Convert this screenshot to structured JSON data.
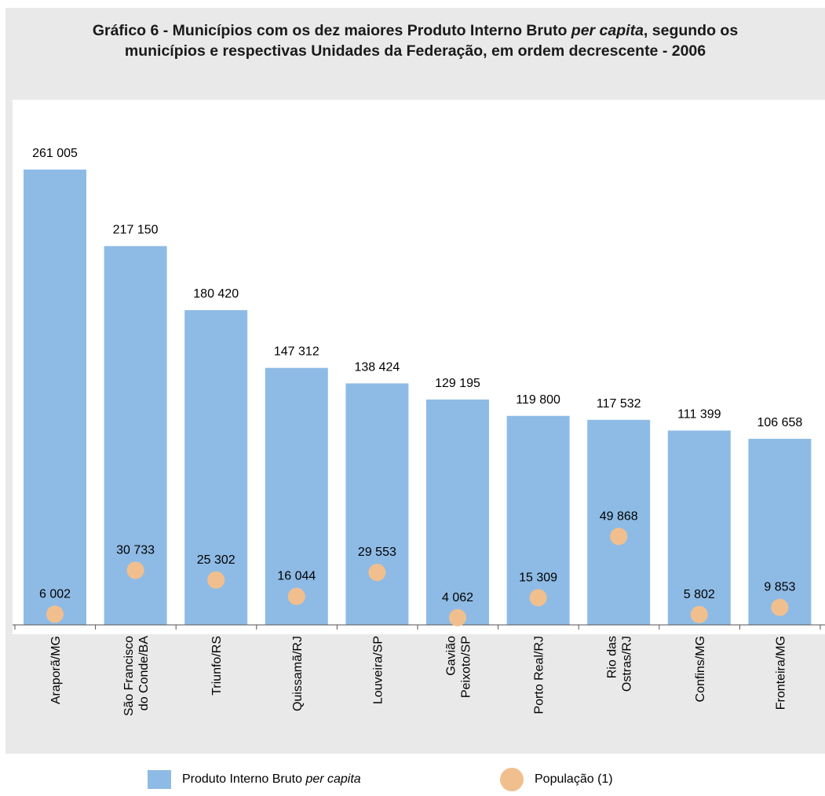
{
  "title": {
    "line1_pre": "Gráfico 6 - Municípios com os dez maiores Produto Interno Bruto ",
    "line1_italic": "per capita",
    "line1_post": ", segundo os",
    "line2": "municípios e respectivas Unidades da Federação, em ordem decrescente - 2006"
  },
  "legend": {
    "pib_label_pre": "Produto Interno Bruto ",
    "pib_label_italic": "per capita",
    "pop_label": "População (1)"
  },
  "colors": {
    "bar": "#8ebbe5",
    "dot": "#f1bf8e",
    "panel": "#e9e9ea"
  },
  "chart_data": {
    "type": "bar",
    "title": "Gráfico 6 - Municípios com os dez maiores Produto Interno Bruto per capita, segundo os municípios e respectivas Unidades da Federação, em ordem decrescente - 2006",
    "categories": [
      [
        "Araporã/MG"
      ],
      [
        "São Francisco",
        "do Conde/BA"
      ],
      [
        "Triunfo/RS"
      ],
      [
        "Quissamã/RJ"
      ],
      [
        "Louveira/SP"
      ],
      [
        "Gavião",
        "Peixoto/SP"
      ],
      [
        "Porto Real/RJ"
      ],
      [
        "Rio das",
        "Ostras/RJ"
      ],
      [
        "Confins/MG"
      ],
      [
        "Fronteira/MG"
      ]
    ],
    "series": [
      {
        "name": "Produto Interno Bruto per capita",
        "type": "bar",
        "values": [
          261005,
          217150,
          180420,
          147312,
          138424,
          129195,
          119800,
          117532,
          111399,
          106658
        ],
        "labels": [
          "261 005",
          "217 150",
          "180 420",
          "147 312",
          "138 424",
          "129 195",
          "119 800",
          "117 532",
          "111 399",
          "106 658"
        ]
      },
      {
        "name": "População (1)",
        "type": "scatter",
        "values": [
          6002,
          30733,
          25302,
          16044,
          29553,
          4062,
          15309,
          49868,
          5802,
          9853
        ],
        "labels": [
          "6 002",
          "30 733",
          "25 302",
          "16 044",
          "29 553",
          "4 062",
          "15 309",
          "49 868",
          "5 802",
          "9 853"
        ]
      }
    ],
    "ylim": [
      0,
      261005
    ],
    "ylim_secondary": [
      0,
      100000
    ],
    "xlabel": "",
    "ylabel": "",
    "grid": false,
    "legend_position": "bottom"
  }
}
